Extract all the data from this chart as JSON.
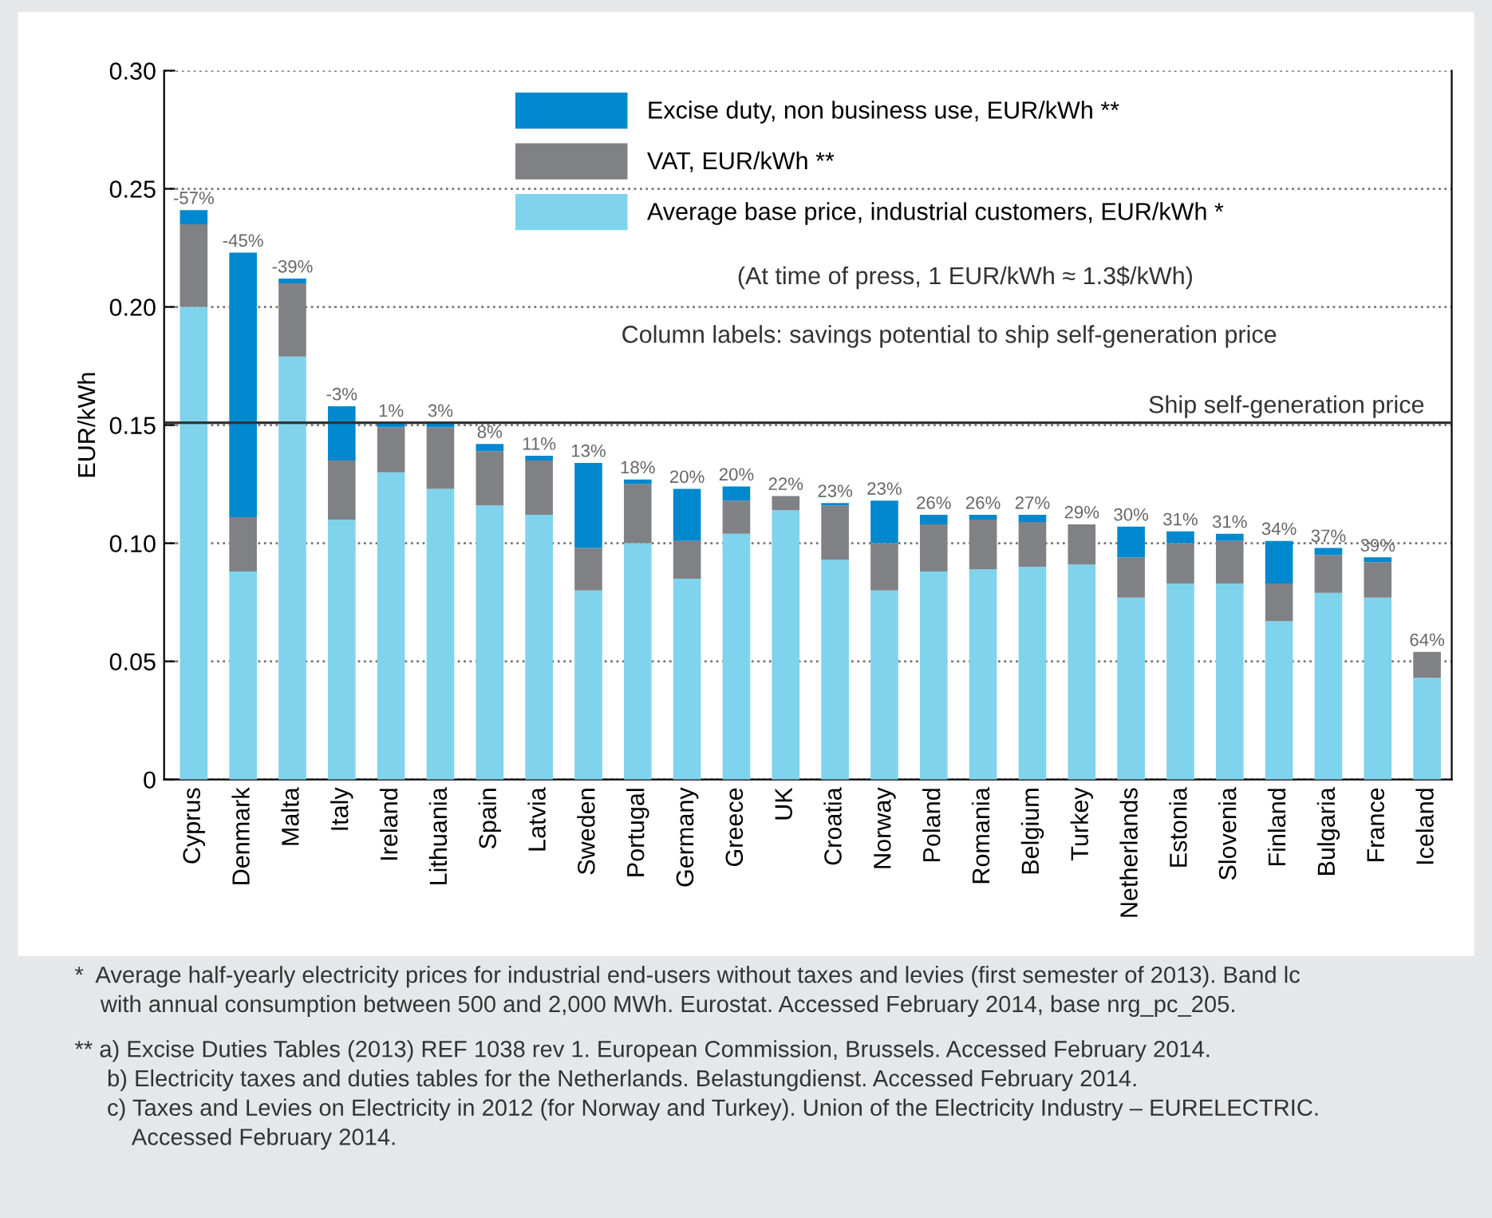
{
  "chart_data": {
    "type": "bar",
    "stacked": true,
    "ylabel": "EUR/kWh",
    "categories": [
      "Cyprus",
      "Denmark",
      "Malta",
      "Italy",
      "Ireland",
      "Lithuania",
      "Spain",
      "Latvia",
      "Sweden",
      "Portugal",
      "Germany",
      "Greece",
      "UK",
      "Croatia",
      "Norway",
      "Poland",
      "Romania",
      "Belgium",
      "Turkey",
      "Netherlands",
      "Estonia",
      "Slovenia",
      "Finland",
      "Bulgaria",
      "France",
      "Iceland"
    ],
    "series": [
      {
        "name": "Average base price, industrial customers, EUR/kWh *",
        "color": "#7fd3ec",
        "values": [
          0.2,
          0.088,
          0.179,
          0.11,
          0.13,
          0.123,
          0.116,
          0.112,
          0.08,
          0.1,
          0.085,
          0.104,
          0.114,
          0.093,
          0.08,
          0.088,
          0.089,
          0.09,
          0.091,
          0.077,
          0.083,
          0.083,
          0.067,
          0.079,
          0.077,
          0.043
        ]
      },
      {
        "name": "VAT, EUR/kWh **",
        "color": "#808185",
        "values": [
          0.035,
          0.023,
          0.031,
          0.025,
          0.019,
          0.026,
          0.023,
          0.023,
          0.018,
          0.025,
          0.016,
          0.014,
          0.006,
          0.023,
          0.02,
          0.02,
          0.021,
          0.019,
          0.017,
          0.017,
          0.017,
          0.018,
          0.016,
          0.016,
          0.015,
          0.011
        ]
      },
      {
        "name": "Excise duty, non business use, EUR/kWh **",
        "color": "#0088cf",
        "values": [
          0.006,
          0.112,
          0.002,
          0.023,
          0.002,
          0.002,
          0.003,
          0.002,
          0.036,
          0.002,
          0.022,
          0.006,
          null,
          0.001,
          0.018,
          0.004,
          0.002,
          0.003,
          null,
          0.013,
          0.005,
          0.003,
          0.018,
          0.003,
          0.002,
          null
        ]
      }
    ],
    "value_labels": [
      "-57%",
      "-45%",
      "-39%",
      "-3%",
      "1%",
      "3%",
      "8%",
      "11%",
      "13%",
      "18%",
      "20%",
      "20%",
      "22%",
      "23%",
      "23%",
      "26%",
      "26%",
      "27%",
      "29%",
      "30%",
      "31%",
      "31%",
      "34%",
      "37%",
      "39%",
      "64%"
    ],
    "ylim": [
      0,
      0.3
    ],
    "yticks": [
      {
        "value": 0,
        "label": "0"
      },
      {
        "value": 0.05,
        "label": "0.05"
      },
      {
        "value": 0.1,
        "label": "0.10"
      },
      {
        "value": 0.15,
        "label": "0.15"
      },
      {
        "value": 0.2,
        "label": "0.20"
      },
      {
        "value": 0.25,
        "label": "0.25"
      },
      {
        "value": 0.3,
        "label": "0.30"
      }
    ],
    "grid": "y",
    "legend": "top right",
    "ref_lines": [
      {
        "axis": "y",
        "value": 0.151,
        "label": "Ship self-generation price",
        "color": "#333333",
        "line_style": "solid"
      }
    ],
    "annotations": [
      "(At time of press, 1 EUR/kWh ≈ 1.3$/kWh)",
      "Column labels: savings potential to ship self-generation price",
      "*  Average half-yearly electricity prices for industrial end-users without taxes and levies (first semester of 2013). Band lc\n    with annual consumption between 500 and 2,000 MWh. Eurostat. Accessed February 2014, base nrg_pc_205.",
      "** a) Excise Duties Tables (2013) REF 1038 rev 1. European Commission, Brussels. Accessed February 2014.\n     b) Electricity taxes and duties tables for the Netherlands. Belastungdienst. Accessed February 2014.\n     c) Taxes and Levies on Electricity in 2012 (for Norway and Turkey). Union of the Electricity Industry – EURELECTRIC.\n         Accessed February 2014."
    ]
  }
}
